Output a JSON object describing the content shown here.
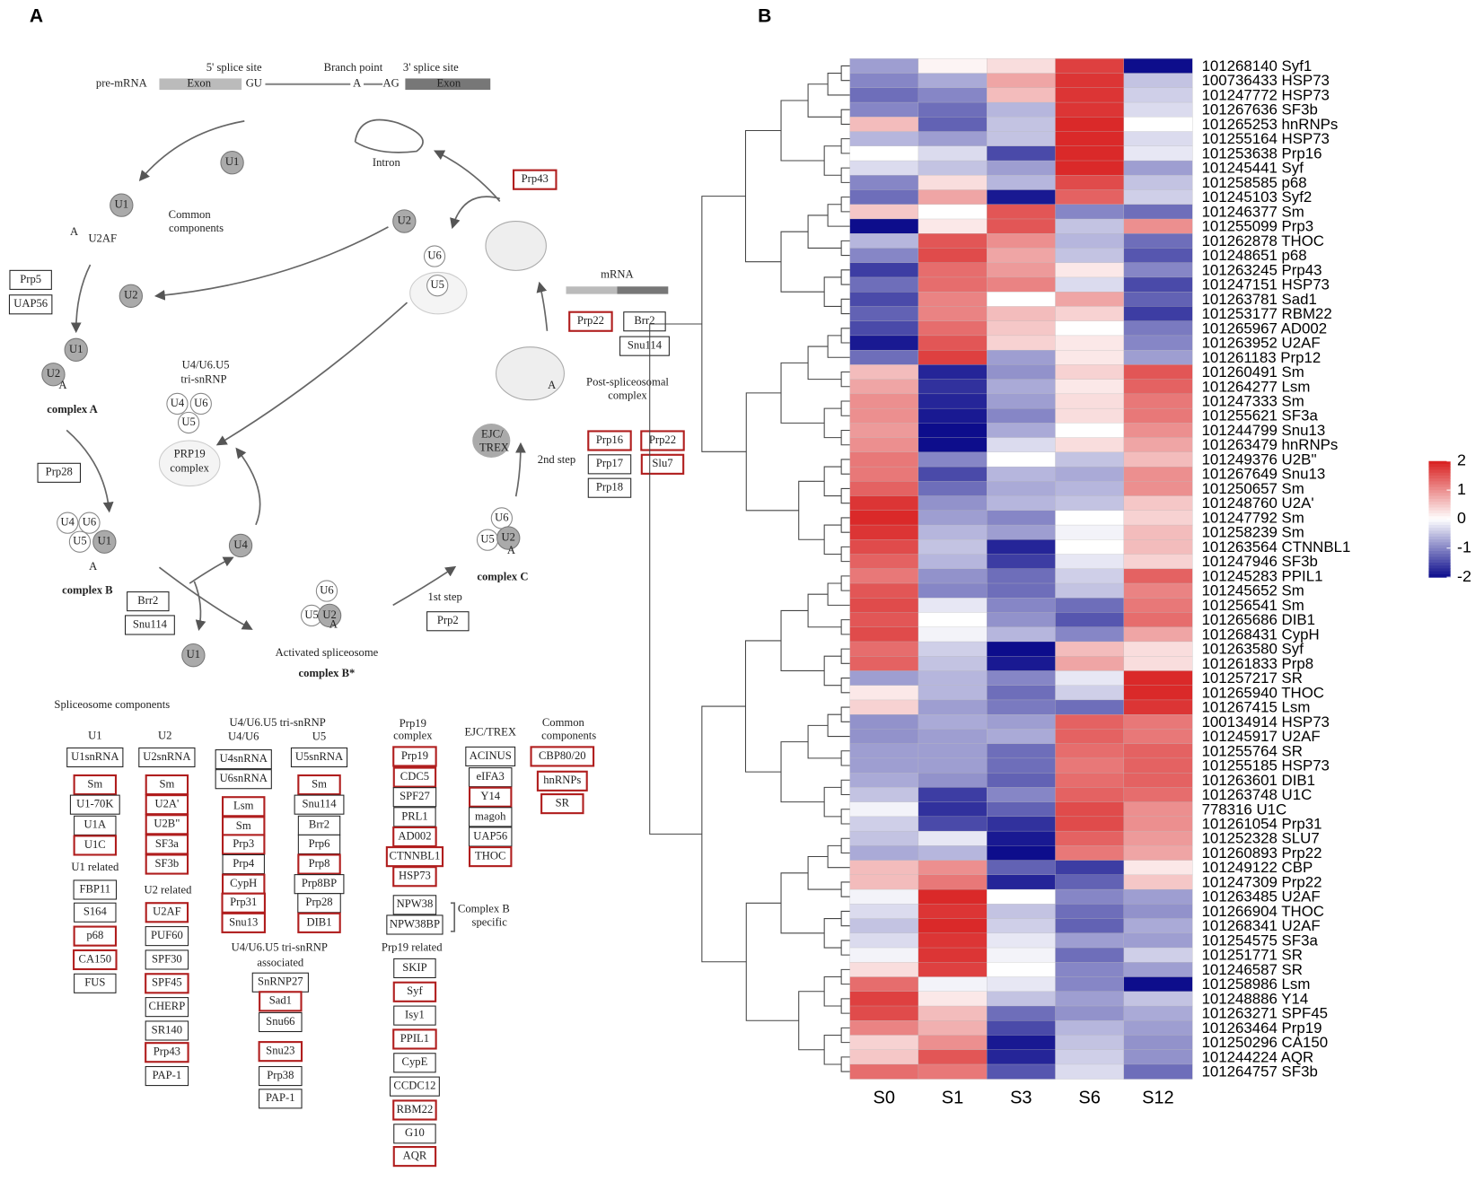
{
  "panel_a": {
    "label": "A",
    "labels": [
      "5' splice site",
      "Branch point",
      "3' splice site",
      "pre-mRNA",
      "Exon",
      "GU",
      "A",
      "AG",
      "Exon",
      "Intron",
      "U1",
      "U1",
      "U2AF",
      "A",
      "Common",
      "components",
      "U2",
      "U6",
      "U5",
      "U2",
      "mRNA",
      "U1",
      "U2",
      "A",
      "complex A",
      "U4/U6.U5",
      "tri-snRNP",
      "U4",
      "U6",
      "U5",
      "PRP19",
      "complex",
      "A",
      "Post-spliceosomal",
      "complex",
      "EJC/",
      "TREX",
      "2nd step",
      "U4",
      "U6",
      "U5",
      "U1",
      "A",
      "complex B",
      "U4",
      "U1",
      "U6",
      "U5",
      "U2",
      "A",
      "Activated spliceosome",
      "complex B*",
      "1st step",
      "U6",
      "U5",
      "U2",
      "A",
      "complex C",
      "Spliceosome components",
      "U1",
      "U2",
      "U4/U6.U5 tri-snRNP",
      "U4/U6",
      "U5",
      "Prp19",
      "complex",
      "EJC/TREX",
      "Common",
      "components",
      "U1 related",
      "U2 related",
      "Complex B",
      "specific",
      "U4/U6.U5 tri-snRNP",
      "associated",
      "Prp19 related"
    ],
    "boxes": [
      {
        "text": "Prp43",
        "highlighted": true
      },
      {
        "text": "Prp5",
        "highlighted": false
      },
      {
        "text": "UAP56",
        "highlighted": false
      },
      {
        "text": "Prp22",
        "highlighted": true
      },
      {
        "text": "Brr2",
        "highlighted": false
      },
      {
        "text": "Snu114",
        "highlighted": false
      },
      {
        "text": "Prp28",
        "highlighted": false
      },
      {
        "text": "Prp16",
        "highlighted": true
      },
      {
        "text": "Prp22",
        "highlighted": true
      },
      {
        "text": "Prp17",
        "highlighted": false
      },
      {
        "text": "Slu7",
        "highlighted": true
      },
      {
        "text": "Prp18",
        "highlighted": false
      },
      {
        "text": "Brr2",
        "highlighted": false
      },
      {
        "text": "Snu114",
        "highlighted": false
      },
      {
        "text": "Prp2",
        "highlighted": false
      },
      {
        "text": "U1snRNA",
        "highlighted": false
      },
      {
        "text": "Sm",
        "highlighted": true
      },
      {
        "text": "U1-70K",
        "highlighted": false
      },
      {
        "text": "U1A",
        "highlighted": false
      },
      {
        "text": "U1C",
        "highlighted": true
      },
      {
        "text": "FBP11",
        "highlighted": false
      },
      {
        "text": "S164",
        "highlighted": false
      },
      {
        "text": "p68",
        "highlighted": true
      },
      {
        "text": "CA150",
        "highlighted": true
      },
      {
        "text": "FUS",
        "highlighted": false
      },
      {
        "text": "U2snRNA",
        "highlighted": false
      },
      {
        "text": "Sm",
        "highlighted": true
      },
      {
        "text": "U2A'",
        "highlighted": true
      },
      {
        "text": "U2B\"",
        "highlighted": true
      },
      {
        "text": "SF3a",
        "highlighted": true
      },
      {
        "text": "SF3b",
        "highlighted": true
      },
      {
        "text": "U2AF",
        "highlighted": true
      },
      {
        "text": "PUF60",
        "highlighted": false
      },
      {
        "text": "SPF30",
        "highlighted": false
      },
      {
        "text": "SPF45",
        "highlighted": true
      },
      {
        "text": "CHERP",
        "highlighted": false
      },
      {
        "text": "SR140",
        "highlighted": false
      },
      {
        "text": "Prp43",
        "highlighted": true
      },
      {
        "text": "PAP-1",
        "highlighted": false
      },
      {
        "text": "U4snRNA",
        "highlighted": false
      },
      {
        "text": "U6snRNA",
        "highlighted": false
      },
      {
        "text": "Lsm",
        "highlighted": true
      },
      {
        "text": "Sm",
        "highlighted": true
      },
      {
        "text": "Prp3",
        "highlighted": true
      },
      {
        "text": "Prp4",
        "highlighted": false
      },
      {
        "text": "CypH",
        "highlighted": true
      },
      {
        "text": "Prp31",
        "highlighted": true
      },
      {
        "text": "Snu13",
        "highlighted": true
      },
      {
        "text": "U5snRNA",
        "highlighted": false
      },
      {
        "text": "Sm",
        "highlighted": true
      },
      {
        "text": "Snu114",
        "highlighted": false
      },
      {
        "text": "Brr2",
        "highlighted": false
      },
      {
        "text": "Prp6",
        "highlighted": false
      },
      {
        "text": "Prp8",
        "highlighted": true
      },
      {
        "text": "Prp8BP",
        "highlighted": false
      },
      {
        "text": "Prp28",
        "highlighted": false
      },
      {
        "text": "DIB1",
        "highlighted": true
      },
      {
        "text": "SnRNP27",
        "highlighted": false
      },
      {
        "text": "Sad1",
        "highlighted": true
      },
      {
        "text": "Snu66",
        "highlighted": false
      },
      {
        "text": "Snu23",
        "highlighted": true
      },
      {
        "text": "Prp38",
        "highlighted": false
      },
      {
        "text": "PAP-1",
        "highlighted": false
      },
      {
        "text": "Prp19",
        "highlighted": true
      },
      {
        "text": "CDC5",
        "highlighted": true
      },
      {
        "text": "SPF27",
        "highlighted": false
      },
      {
        "text": "PRL1",
        "highlighted": false
      },
      {
        "text": "AD002",
        "highlighted": true
      },
      {
        "text": "CTNNBL1",
        "highlighted": true
      },
      {
        "text": "HSP73",
        "highlighted": true
      },
      {
        "text": "NPW38",
        "highlighted": false
      },
      {
        "text": "NPW38BP",
        "highlighted": false
      },
      {
        "text": "SKIP",
        "highlighted": false
      },
      {
        "text": "Syf",
        "highlighted": true
      },
      {
        "text": "Isy1",
        "highlighted": false
      },
      {
        "text": "PPIL1",
        "highlighted": true
      },
      {
        "text": "CypE",
        "highlighted": false
      },
      {
        "text": "CCDC12",
        "highlighted": false
      },
      {
        "text": "RBM22",
        "highlighted": true
      },
      {
        "text": "G10",
        "highlighted": false
      },
      {
        "text": "AQR",
        "highlighted": true
      },
      {
        "text": "ACINUS",
        "highlighted": false
      },
      {
        "text": "eIFA3",
        "highlighted": false
      },
      {
        "text": "Y14",
        "highlighted": true
      },
      {
        "text": "magoh",
        "highlighted": false
      },
      {
        "text": "UAP56",
        "highlighted": false
      },
      {
        "text": "THOC",
        "highlighted": true
      },
      {
        "text": "CBP80/20",
        "highlighted": true
      },
      {
        "text": "hnRNPs",
        "highlighted": true
      },
      {
        "text": "SR",
        "highlighted": true
      }
    ],
    "highlight_color": "#b01e1e"
  },
  "chart_data": {
    "type": "heatmap",
    "label": "B",
    "columns": [
      "S0",
      "S1",
      "S3",
      "S6",
      "S12"
    ],
    "clim": [
      -2,
      2
    ],
    "cticks": [
      2,
      1,
      0,
      -1,
      -2
    ],
    "colors": {
      "low": "#0d0d8c",
      "mid": "#ffffff",
      "high": "#d81e1e"
    },
    "rows": [
      {
        "label": "101268140 Syf1",
        "values": [
          -0.8,
          0.1,
          0.3,
          1.7,
          -2
        ]
      },
      {
        "label": "100736433 HSP73",
        "values": [
          -1,
          -0.7,
          0.8,
          1.8,
          -0.5
        ]
      },
      {
        "label": "101247772 HSP73",
        "values": [
          -1.2,
          -1,
          0.6,
          1.8,
          -0.4
        ]
      },
      {
        "label": "101267636 SF3b",
        "values": [
          -1,
          -1.2,
          -0.6,
          1.8,
          -0.3
        ]
      },
      {
        "label": "101265253 hnRNPs",
        "values": [
          0.6,
          -1.3,
          -0.5,
          1.9,
          0
        ]
      },
      {
        "label": "101255164 HSP73",
        "values": [
          -0.6,
          -0.8,
          -0.5,
          1.9,
          -0.3
        ]
      },
      {
        "label": "101253638 Prp16",
        "values": [
          0,
          -0.3,
          -1.5,
          1.9,
          -0.2
        ]
      },
      {
        "label": "101245441 Syf",
        "values": [
          -0.3,
          -0.5,
          -0.8,
          1.9,
          -0.8
        ]
      },
      {
        "label": "101258585 p68",
        "values": [
          -1,
          0.3,
          -0.6,
          1.6,
          -0.5
        ]
      },
      {
        "label": "101245103 Syf2",
        "values": [
          -1.2,
          0.8,
          -1.9,
          1.4,
          -0.4
        ]
      },
      {
        "label": "101246377 Sm",
        "values": [
          0.5,
          0,
          1.5,
          -1,
          -1.2
        ]
      },
      {
        "label": "101255099 Prp3",
        "values": [
          -2,
          0.2,
          1.5,
          -0.5,
          1
        ]
      },
      {
        "label": "101262878 THOC",
        "values": [
          -0.6,
          1.5,
          1,
          -0.6,
          -1.2
        ]
      },
      {
        "label": "101248651 p68",
        "values": [
          -1,
          1.6,
          0.8,
          -0.5,
          -1.4
        ]
      },
      {
        "label": "101263245 Prp43",
        "values": [
          -1.6,
          1.3,
          0.9,
          0.2,
          -1
        ]
      },
      {
        "label": "101247151 HSP73",
        "values": [
          -1.2,
          1.3,
          1.1,
          -0.3,
          -1.5
        ]
      },
      {
        "label": "101263781 Sad1",
        "values": [
          -1.5,
          1.1,
          0,
          0.8,
          -1.3
        ]
      },
      {
        "label": "101253177 RBM22",
        "values": [
          -1.3,
          1.1,
          0.6,
          0.4,
          -1.6
        ]
      },
      {
        "label": "101265967 AD002",
        "values": [
          -1.5,
          1.3,
          0.5,
          0,
          -1.1
        ]
      },
      {
        "label": "101263952 U2AF",
        "values": [
          -1.9,
          1.5,
          0.4,
          0.2,
          -1
        ]
      },
      {
        "label": "101261183 Prp12",
        "values": [
          -1.2,
          1.7,
          -0.8,
          0.2,
          -0.8
        ]
      },
      {
        "label": "101260491 Sm",
        "values": [
          0.6,
          -1.8,
          -0.9,
          0.4,
          1.5
        ]
      },
      {
        "label": "101264277 Lsm",
        "values": [
          0.8,
          -1.7,
          -0.7,
          0.2,
          1.4
        ]
      },
      {
        "label": "101247333 Sm",
        "values": [
          1,
          -1.8,
          -0.8,
          0.3,
          1.2
        ]
      },
      {
        "label": "101255621 SF3a",
        "values": [
          1,
          -1.9,
          -1,
          0.3,
          1.2
        ]
      },
      {
        "label": "101244799 Snu13",
        "values": [
          0.9,
          -2,
          -0.7,
          0,
          1
        ]
      },
      {
        "label": "101263479 hnRNPs",
        "values": [
          1,
          -2,
          -0.3,
          0.3,
          0.8
        ]
      },
      {
        "label": "101249376 U2B''",
        "values": [
          1.2,
          -1,
          0,
          -0.5,
          0.6
        ]
      },
      {
        "label": "101267649 Snu13",
        "values": [
          1.2,
          -1.5,
          -0.6,
          -0.7,
          1
        ]
      },
      {
        "label": "101250657 Sm",
        "values": [
          1.4,
          -1.2,
          -0.7,
          -0.6,
          1
        ]
      },
      {
        "label": "101248760 U2A'",
        "values": [
          1.8,
          -0.9,
          -0.6,
          -0.5,
          0.5
        ]
      },
      {
        "label": "101247792 Sm",
        "values": [
          1.9,
          -0.8,
          -1,
          0,
          0.4
        ]
      },
      {
        "label": "101258239 Sm",
        "values": [
          1.8,
          -0.6,
          -0.8,
          -0.1,
          0.6
        ]
      },
      {
        "label": "101263564 CTNNBL1",
        "values": [
          1.6,
          -0.5,
          -1.8,
          0,
          0.6
        ]
      },
      {
        "label": "101247946 SF3b",
        "values": [
          1.4,
          -0.6,
          -1.6,
          -0.2,
          0.4
        ]
      },
      {
        "label": "101245283 PPIL1",
        "values": [
          1.2,
          -0.9,
          -1.2,
          -0.4,
          1.4
        ]
      },
      {
        "label": "101245652 Sm",
        "values": [
          1.5,
          -1,
          -1.2,
          -0.5,
          1.1
        ]
      },
      {
        "label": "101256541 Sm",
        "values": [
          1.6,
          -0.2,
          -1,
          -1.2,
          1.2
        ]
      },
      {
        "label": "101265686 DIB1",
        "values": [
          1.5,
          0,
          -0.9,
          -1.4,
          1.3
        ]
      },
      {
        "label": "101268431 CypH",
        "values": [
          1.6,
          -0.1,
          -0.6,
          -1,
          0.8
        ]
      },
      {
        "label": "101263580 Syf",
        "values": [
          1.3,
          -0.4,
          -2,
          0.6,
          0.3
        ]
      },
      {
        "label": "101261833 Prp8",
        "values": [
          1.4,
          -0.5,
          -1.9,
          0.8,
          0.3
        ]
      },
      {
        "label": "101257217 SR",
        "values": [
          -0.8,
          -0.6,
          -1,
          -0.2,
          1.9
        ]
      },
      {
        "label": "101265940 THOC",
        "values": [
          0.2,
          -0.6,
          -1.2,
          -0.4,
          1.9
        ]
      },
      {
        "label": "101267415 Lsm",
        "values": [
          0.4,
          -0.8,
          -1.1,
          -1.2,
          1.8
        ]
      },
      {
        "label": "100134914 HSP73",
        "values": [
          -0.9,
          -0.7,
          -0.8,
          1.4,
          1.2
        ]
      },
      {
        "label": "101245917 U2AF",
        "values": [
          -0.9,
          -0.8,
          -0.7,
          1.4,
          1.2
        ]
      },
      {
        "label": "101255764 SR",
        "values": [
          -0.8,
          -0.8,
          -1.2,
          1.3,
          1.4
        ]
      },
      {
        "label": "101255185 HSP73",
        "values": [
          -0.8,
          -0.8,
          -1.2,
          1.2,
          1.4
        ]
      },
      {
        "label": "101263601 DIB1",
        "values": [
          -0.7,
          -0.9,
          -1.3,
          1.3,
          1.4
        ]
      },
      {
        "label": "101263748 U1C",
        "values": [
          -0.5,
          -1.6,
          -1,
          1.4,
          1.3
        ]
      },
      {
        "label": "778316 U1C",
        "values": [
          -0.1,
          -1.7,
          -1.3,
          1.6,
          1
        ]
      },
      {
        "label": "101261054 Prp31",
        "values": [
          -0.4,
          -1.5,
          -1.7,
          1.6,
          1
        ]
      },
      {
        "label": "101252328 SLU7",
        "values": [
          -0.5,
          -0.2,
          -1.9,
          1.4,
          0.9
        ]
      },
      {
        "label": "101260893 Prp22",
        "values": [
          -0.7,
          -0.6,
          -2,
          1.2,
          0.8
        ]
      },
      {
        "label": "101249122 CBP",
        "values": [
          0.6,
          1,
          -1.3,
          -1.6,
          0.2
        ]
      },
      {
        "label": "101247309 Prp22",
        "values": [
          0.6,
          1.2,
          -1.8,
          -1.3,
          0.5
        ]
      },
      {
        "label": "101263485 U2AF",
        "values": [
          -0.1,
          1.9,
          0,
          -1,
          -0.8
        ]
      },
      {
        "label": "101266904 THOC",
        "values": [
          -0.3,
          1.8,
          -0.5,
          -1.2,
          -0.9
        ]
      },
      {
        "label": "101268341 U2AF",
        "values": [
          -0.5,
          1.9,
          -0.4,
          -1.3,
          -0.7
        ]
      },
      {
        "label": "101254575 SF3a",
        "values": [
          -0.3,
          1.8,
          -0.2,
          -0.8,
          -0.8
        ]
      },
      {
        "label": "101251771 SR",
        "values": [
          -0.1,
          1.8,
          -0.1,
          -1.2,
          -0.4
        ]
      },
      {
        "label": "101246587 SR",
        "values": [
          0.3,
          1.7,
          0,
          -1,
          -0.8
        ]
      },
      {
        "label": "101258986 Lsm",
        "values": [
          1.3,
          -0.1,
          -0.2,
          -1,
          -2
        ]
      },
      {
        "label": "101248886 Y14",
        "values": [
          1.7,
          0.2,
          -0.5,
          -0.8,
          -0.5
        ]
      },
      {
        "label": "101263271 SPF45",
        "values": [
          1.6,
          0.6,
          -1.2,
          -0.9,
          -0.7
        ]
      },
      {
        "label": "101263464 Prp19",
        "values": [
          1.1,
          0.7,
          -1.5,
          -0.6,
          -0.8
        ]
      },
      {
        "label": "101250296 CA150",
        "values": [
          0.4,
          1,
          -1.9,
          -0.5,
          -0.9
        ]
      },
      {
        "label": "101244224 AQR",
        "values": [
          0.5,
          1.5,
          -1.8,
          -0.4,
          -0.9
        ]
      },
      {
        "label": "101264757 SF3b",
        "values": [
          1.3,
          1.2,
          -1.4,
          -0.3,
          -1.2
        ]
      }
    ]
  }
}
